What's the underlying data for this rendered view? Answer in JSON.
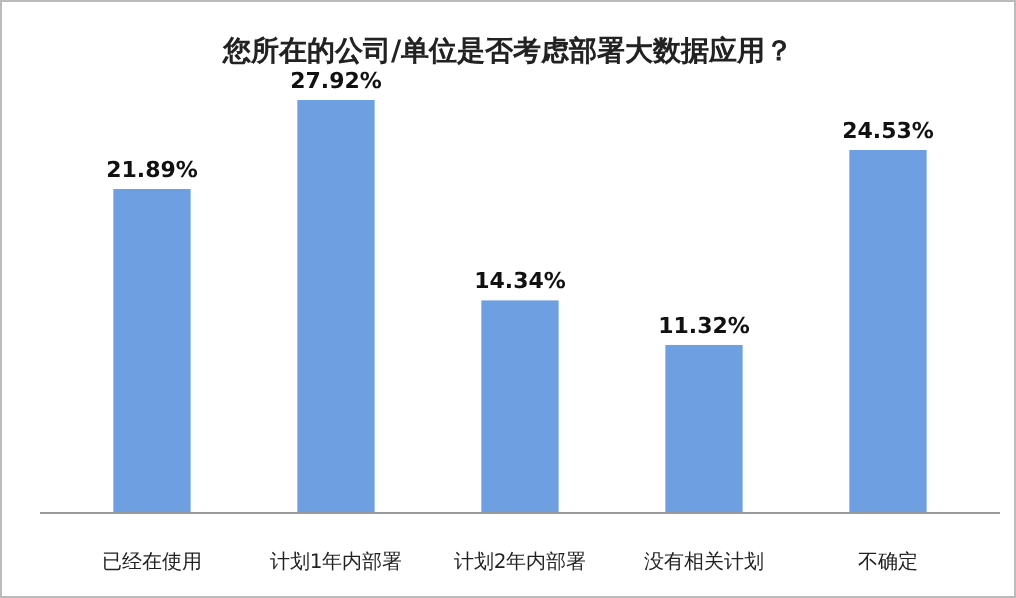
{
  "chart_data": {
    "type": "bar",
    "title": "您所在的公司/单位是否考虑部署大数据应用？",
    "categories": [
      "已经在使用",
      "计划1年内部署",
      "计划2年内部署",
      "没有相关计划",
      "不确定"
    ],
    "values": [
      21.89,
      27.92,
      14.34,
      11.32,
      24.53
    ],
    "value_labels": [
      "21.89%",
      "27.92%",
      "14.34%",
      "11.32%",
      "24.53%"
    ],
    "color": "#6e9fe0"
  }
}
